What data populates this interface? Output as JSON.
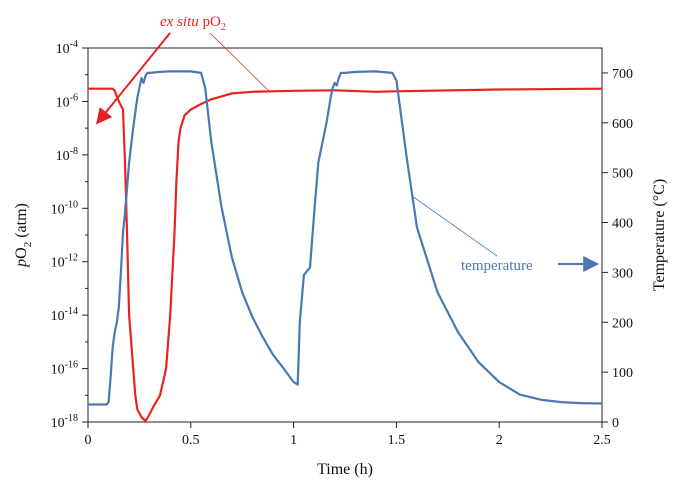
{
  "chart_data": {
    "type": "line",
    "xlabel": "Time (h)",
    "ylabel_left": {
      "prefix": "p",
      "main": "O",
      "sub": "2",
      "suffix": " (atm)"
    },
    "ylabel_right": "Temperature (°C)",
    "xlim": [
      0,
      2.5
    ],
    "xticks": [
      "0",
      "0.5",
      "1",
      "1.5",
      "2",
      "2.5"
    ],
    "y_left": {
      "scale": "log",
      "lim": [
        1e-18,
        0.0001
      ],
      "ticks": [
        {
          "base": "10",
          "exp": "-18",
          "value": 1e-18
        },
        {
          "base": "10",
          "exp": "-16",
          "value": 1e-16
        },
        {
          "base": "10",
          "exp": "-14",
          "value": 1e-14
        },
        {
          "base": "10",
          "exp": "-12",
          "value": 1e-12
        },
        {
          "base": "10",
          "exp": "-10",
          "value": 1e-10
        },
        {
          "base": "10",
          "exp": "-8",
          "value": 1e-08
        },
        {
          "base": "10",
          "exp": "-6",
          "value": 1e-06
        },
        {
          "base": "10",
          "exp": "-4",
          "value": 0.0001
        }
      ]
    },
    "y_right": {
      "scale": "linear",
      "lim": [
        0,
        750
      ],
      "ticks": [
        "0",
        "100",
        "200",
        "300",
        "400",
        "500",
        "600",
        "700"
      ]
    },
    "grid": false,
    "series": [
      {
        "axis": "left",
        "color": "#e8231f",
        "x": [
          0,
          0.12,
          0.13,
          0.15,
          0.17,
          0.18,
          0.19,
          0.2,
          0.21,
          0.22,
          0.23,
          0.24,
          0.26,
          0.28,
          0.3,
          0.32,
          0.35,
          0.38,
          0.4,
          0.42,
          0.43,
          0.44,
          0.45,
          0.47,
          0.5,
          0.55,
          0.6,
          0.7,
          0.8,
          1.0,
          1.2,
          1.4,
          1.5,
          2.0,
          2.5
        ],
        "y": [
          3e-06,
          3e-06,
          2.5e-06,
          1e-06,
          5e-07,
          5e-09,
          1e-11,
          1e-14,
          1e-15,
          1e-16,
          1e-17,
          3e-18,
          1.5e-18,
          8e-19,
          2e-18,
          4e-18,
          1e-17,
          1e-16,
          1e-14,
          1e-11,
          1e-09,
          3e-08,
          1e-07,
          3e-07,
          5e-07,
          8e-07,
          1.2e-06,
          2e-06,
          2.3e-06,
          2.5e-06,
          2.6e-06,
          2.3e-06,
          2.4e-06,
          2.8e-06,
          3e-06
        ]
      },
      {
        "axis": "right",
        "color": "#4a78b5",
        "x": [
          0,
          0.09,
          0.1,
          0.11,
          0.12,
          0.13,
          0.14,
          0.15,
          0.16,
          0.17,
          0.18,
          0.19,
          0.2,
          0.22,
          0.24,
          0.26,
          0.27,
          0.28,
          0.29,
          0.3,
          0.35,
          0.4,
          0.45,
          0.5,
          0.55,
          0.57,
          0.6,
          0.65,
          0.7,
          0.75,
          0.8,
          0.85,
          0.9,
          0.95,
          1.0,
          1.02,
          1.03,
          1.05,
          1.08,
          1.1,
          1.12,
          1.14,
          1.16,
          1.18,
          1.19,
          1.2,
          1.21,
          1.22,
          1.23,
          1.25,
          1.3,
          1.4,
          1.48,
          1.5,
          1.55,
          1.6,
          1.7,
          1.8,
          1.9,
          2.0,
          2.1,
          2.2,
          2.3,
          2.4,
          2.5
        ],
        "y": [
          35,
          35,
          40,
          90,
          150,
          180,
          200,
          230,
          300,
          380,
          420,
          470,
          520,
          590,
          650,
          690,
          680,
          695,
          700,
          700,
          702,
          703,
          703,
          703,
          700,
          670,
          560,
          430,
          330,
          260,
          210,
          170,
          135,
          108,
          80,
          75,
          200,
          295,
          310,
          420,
          520,
          560,
          600,
          650,
          670,
          680,
          675,
          690,
          700,
          700,
          702,
          703,
          700,
          685,
          530,
          390,
          260,
          180,
          120,
          80,
          55,
          45,
          40,
          38,
          37
        ]
      }
    ],
    "annotations": [
      {
        "italic": "ex situ",
        "plain": " pO",
        "sub": "2",
        "color": "#e8231f",
        "arrow_points_to": "left axis",
        "label_points_to": "red series"
      },
      {
        "text": "temperature",
        "color": "#4a78b5",
        "arrow_points_to": "right axis",
        "label_points_to": "blue series"
      }
    ]
  }
}
